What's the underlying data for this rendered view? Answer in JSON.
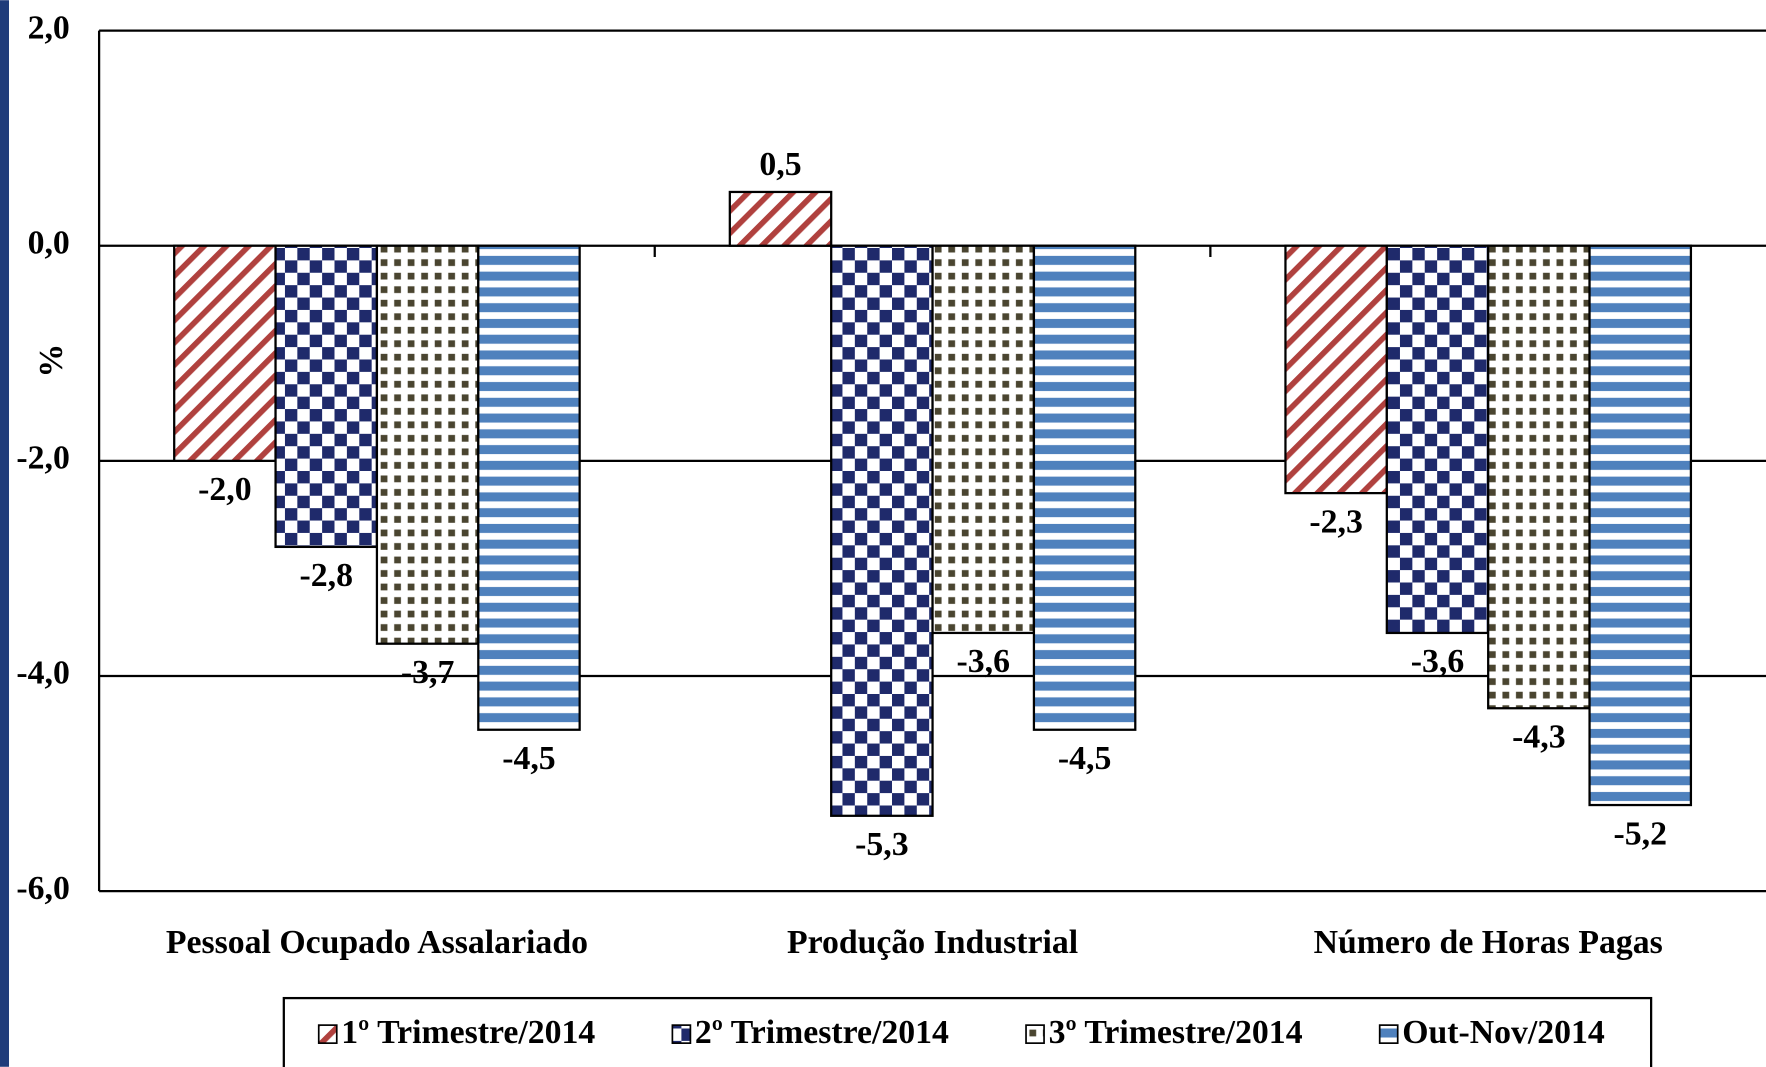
{
  "chart_data": {
    "type": "bar",
    "y_label": "%",
    "categories": [
      "Pessoal Ocupado Assalariado",
      "Produção Industrial",
      "Número de Horas Pagas"
    ],
    "series": [
      {
        "name": "1º Trimestre/2014",
        "color": "#b0413e",
        "values": [
          -2.0,
          0.5,
          -2.3
        ],
        "value_labels": [
          "-2,0",
          "0,5",
          "-2,3"
        ]
      },
      {
        "name": "2º Trimestre/2014",
        "color": "#1f2a6b",
        "values": [
          -2.8,
          -5.3,
          -3.6
        ],
        "value_labels": [
          "-2,8",
          "-5,3",
          "-3,6"
        ]
      },
      {
        "name": "3º Trimestre/2014",
        "color": "#4a4530",
        "values": [
          -3.7,
          -3.6,
          -4.3
        ],
        "value_labels": [
          "-3,7",
          "-3,6",
          "-4,3"
        ]
      },
      {
        "name": "Out-Nov/2014",
        "color": "#4f81bd",
        "values": [
          -4.5,
          -4.5,
          -5.2
        ],
        "value_labels": [
          "-4,5",
          "-4,5",
          "-5,2"
        ]
      }
    ],
    "ylim": [
      -6,
      2
    ],
    "yticks": [
      {
        "value": 2,
        "label": "2,0"
      },
      {
        "value": 0,
        "label": "0,0"
      },
      {
        "value": -2,
        "label": "-2,0"
      },
      {
        "value": -4,
        "label": "-4,0"
      },
      {
        "value": -6,
        "label": "-6,0"
      }
    ],
    "grid": true,
    "legend": "bottom"
  }
}
